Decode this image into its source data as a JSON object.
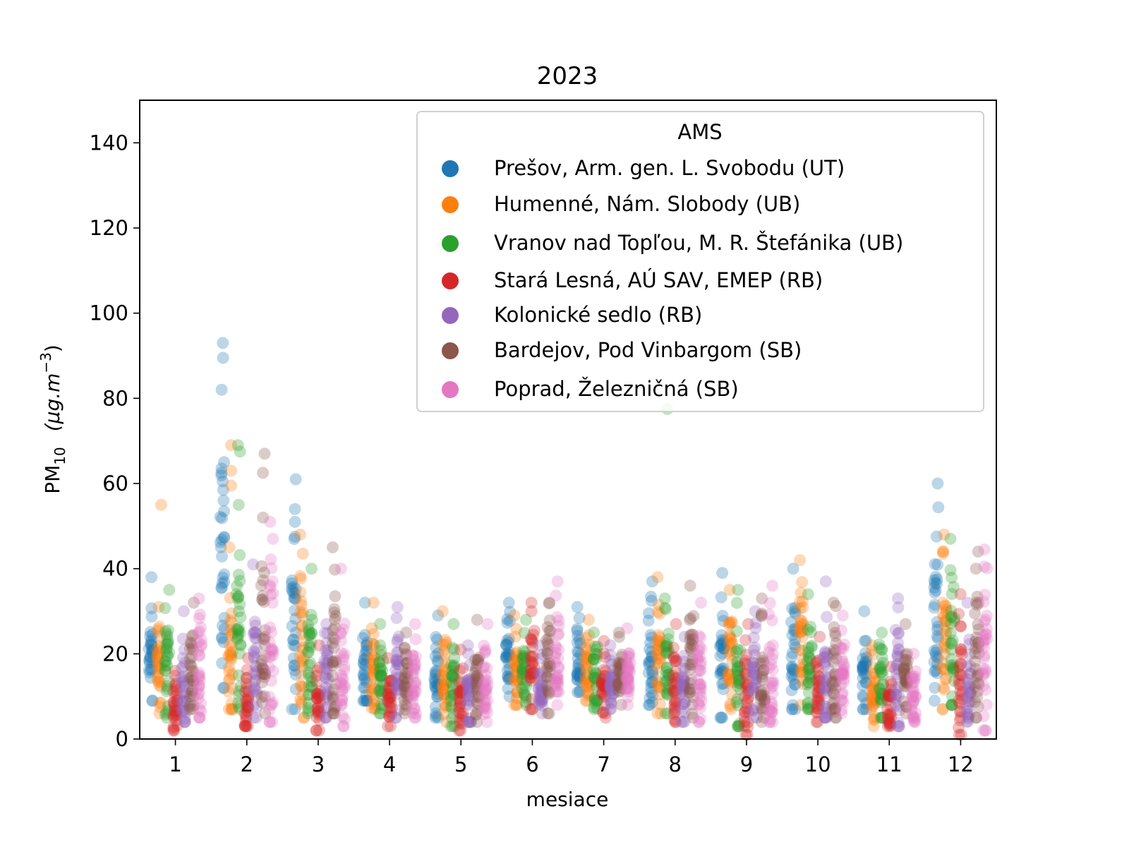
{
  "chart_data": {
    "type": "scatter",
    "title": "2023",
    "xlabel": "mesiace",
    "ylabel_main": "PM",
    "ylabel_sub": "10",
    "ylabel_unit": "(μg.m",
    "ylabel_unit_sup": "−3",
    "ylabel_unit_end": ")",
    "xlim": [
      0.5,
      12.5
    ],
    "ylim": [
      0,
      150
    ],
    "yticks": [
      0,
      20,
      40,
      60,
      80,
      100,
      120,
      140
    ],
    "categories": [
      "1",
      "2",
      "3",
      "4",
      "5",
      "6",
      "7",
      "8",
      "9",
      "10",
      "11",
      "12"
    ],
    "legend": {
      "title": "AMS",
      "position": "top-right"
    },
    "series": [
      {
        "name": "Prešov, Arm. gen. L. Svobodu (UT)",
        "color": "#1f77b4",
        "ranges": [
          [
            9,
            38
          ],
          [
            12,
            93
          ],
          [
            7,
            61
          ],
          [
            9,
            32
          ],
          [
            5,
            29
          ],
          [
            10,
            32
          ],
          [
            11,
            31
          ],
          [
            8,
            37
          ],
          [
            5,
            39
          ],
          [
            7,
            40
          ],
          [
            7,
            30
          ],
          [
            9,
            60
          ]
        ],
        "outliers": [
          [],
          [
            89.5,
            65,
            63.5,
            56
          ],
          [
            54,
            47.5
          ],
          [],
          [],
          [],
          [],
          [],
          [],
          [],
          [],
          [
            37.5,
            36.5
          ]
        ]
      },
      {
        "name": "Humenné, Nám. Slobody (UB)",
        "color": "#ff7f0e",
        "ranges": [
          [
            6,
            31
          ],
          [
            7,
            45
          ],
          [
            5,
            48
          ],
          [
            7,
            32
          ],
          [
            4,
            30
          ],
          [
            8,
            29
          ],
          [
            9,
            28
          ],
          [
            6,
            38
          ],
          [
            7,
            35
          ],
          [
            8,
            42
          ],
          [
            3,
            22
          ],
          [
            7,
            48
          ]
        ],
        "outliers": [
          [
            55
          ],
          [
            69,
            63,
            59.5
          ],
          [
            43.5
          ],
          [],
          [],
          [],
          [],
          [],
          [],
          [],
          [],
          [
            44,
            43.5
          ]
        ]
      },
      {
        "name": "Vranov nad Topľou, M. R. Štefánika (UB)",
        "color": "#2ca02c",
        "ranges": [
          [
            5,
            35
          ],
          [
            7,
            55
          ],
          [
            6,
            40
          ],
          [
            6,
            27
          ],
          [
            3,
            27
          ],
          [
            8,
            28
          ],
          [
            7,
            25
          ],
          [
            6,
            33
          ],
          [
            3,
            35
          ],
          [
            7,
            34
          ],
          [
            5,
            25
          ],
          [
            8,
            47
          ]
        ],
        "outliers": [
          [],
          [
            69,
            67.5
          ],
          [],
          [],
          [],
          [],
          [],
          [
            77.5
          ],
          [],
          [],
          [],
          []
        ]
      },
      {
        "name": "Stará Lesná, AÚ SAV, EMEP (RB)",
        "color": "#d62728",
        "ranges": [
          [
            2,
            16
          ],
          [
            3,
            19
          ],
          [
            2,
            22
          ],
          [
            3,
            19
          ],
          [
            2,
            21
          ],
          [
            7,
            32
          ],
          [
            5,
            23
          ],
          [
            4,
            27
          ],
          [
            1,
            27
          ],
          [
            4,
            24
          ],
          [
            3,
            17
          ],
          [
            1,
            34
          ]
        ],
        "outliers": [
          [],
          [],
          [],
          [],
          [],
          [],
          [],
          [],
          [],
          [],
          [],
          []
        ]
      },
      {
        "name": "Kolonické sedlo (RB)",
        "color": "#9467bd",
        "ranges": [
          [
            4,
            30
          ],
          [
            5,
            41
          ],
          [
            5,
            27
          ],
          [
            5,
            31
          ],
          [
            4,
            22
          ],
          [
            6,
            22
          ],
          [
            7,
            22
          ],
          [
            4,
            24
          ],
          [
            5,
            30
          ],
          [
            5,
            37
          ],
          [
            3,
            33
          ],
          [
            4,
            32
          ]
        ],
        "outliers": [
          [],
          [],
          [],
          [],
          [],
          [],
          [],
          [],
          [],
          [],
          [],
          []
        ]
      },
      {
        "name": "Bardejov, Pod Vinbargom (SB)",
        "color": "#8c564b",
        "ranges": [
          [
            7,
            32
          ],
          [
            6,
            52
          ],
          [
            6,
            45
          ],
          [
            6,
            25
          ],
          [
            4,
            28
          ],
          [
            6,
            32
          ],
          [
            8,
            25
          ],
          [
            5,
            36
          ],
          [
            4,
            33
          ],
          [
            5,
            32
          ],
          [
            6,
            27
          ],
          [
            5,
            44
          ]
        ],
        "outliers": [
          [],
          [
            67,
            62.5
          ],
          [],
          [],
          [],
          [],
          [],
          [],
          [],
          [],
          [],
          [
            40
          ]
        ]
      },
      {
        "name": "Poprad, Železničná (SB)",
        "color": "#e377c2",
        "ranges": [
          [
            5,
            33
          ],
          [
            4,
            51
          ],
          [
            3,
            40
          ],
          [
            5,
            27
          ],
          [
            4,
            27
          ],
          [
            8,
            37
          ],
          [
            8,
            26
          ],
          [
            4,
            32
          ],
          [
            4,
            36
          ],
          [
            6,
            29
          ],
          [
            4,
            20
          ],
          [
            2,
            44.5
          ]
        ],
        "outliers": [
          [],
          [
            47
          ],
          [],
          [],
          [],
          [],
          [],
          [],
          [],
          [],
          [],
          [
            40.5
          ]
        ]
      }
    ]
  }
}
